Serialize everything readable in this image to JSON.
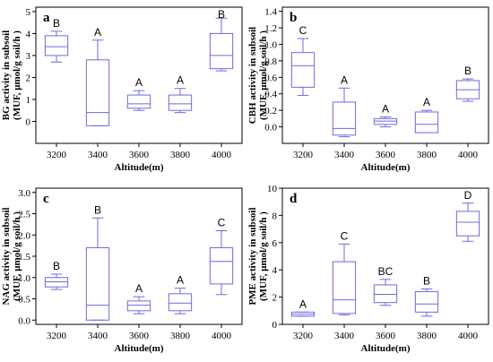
{
  "chart_data": [
    {
      "type": "box",
      "panel_label": "a",
      "ylabel": [
        "BG activity in subsoil",
        "(MUF, μmol/g soil/h )"
      ],
      "xlabel": "Altitude(m)",
      "color": "#6b6bde",
      "categories": [
        "3200",
        "3400",
        "3600",
        "3800",
        "4000"
      ],
      "min": [
        2.7,
        -0.2,
        0.5,
        0.4,
        2.3
      ],
      "q1": [
        3.0,
        -0.2,
        0.6,
        0.5,
        2.4
      ],
      "median": [
        3.4,
        0.4,
        0.8,
        0.8,
        3.0
      ],
      "q3": [
        3.9,
        2.8,
        1.2,
        1.2,
        4.0
      ],
      "max": [
        4.1,
        3.7,
        1.4,
        1.5,
        4.7
      ],
      "letters": [
        "B",
        "A",
        "A",
        "A",
        "B"
      ],
      "ylim": [
        -1,
        5.2
      ],
      "yticks": [
        0,
        1,
        2,
        3,
        4,
        5
      ]
    },
    {
      "type": "box",
      "panel_label": "b",
      "ylabel": [
        "CBH activity in subsoil",
        "(MUF, μmol/g soil/h )"
      ],
      "xlabel": "Altitude(m)",
      "color": "#6b6bde",
      "categories": [
        "3200",
        "3400",
        "3600",
        "3800",
        "4000"
      ],
      "min": [
        0.38,
        -0.12,
        0.0,
        -0.07,
        0.31
      ],
      "q1": [
        0.48,
        -0.1,
        0.03,
        -0.07,
        0.34
      ],
      "median": [
        0.74,
        -0.02,
        0.07,
        0.03,
        0.45
      ],
      "q3": [
        0.9,
        0.3,
        0.1,
        0.18,
        0.56
      ],
      "max": [
        1.07,
        0.47,
        0.12,
        0.2,
        0.58
      ],
      "letters": [
        "C",
        "A",
        "A",
        "A",
        "B"
      ],
      "ylim": [
        -0.2,
        1.45
      ],
      "yticks": [
        {
          "value": 0,
          "label": "0.0"
        },
        0.2,
        0.4,
        0.6,
        0.8,
        {
          "value": 1,
          "label": "1.0"
        },
        1.2,
        1.4
      ]
    },
    {
      "type": "box",
      "panel_label": "c",
      "ylabel": [
        "NAG activity in subsoil",
        "(MUF, μmol/g soil/h )"
      ],
      "xlabel": "Altitude(m)",
      "color": "#6b6bde",
      "categories": [
        "3200",
        "3400",
        "3600",
        "3800",
        "4000"
      ],
      "min": [
        0.72,
        0,
        0.15,
        0.15,
        0.6
      ],
      "q1": [
        0.78,
        0,
        0.22,
        0.22,
        0.85
      ],
      "median": [
        0.9,
        0.35,
        0.35,
        0.4,
        1.38
      ],
      "q3": [
        1.0,
        1.7,
        0.45,
        0.62,
        1.7
      ],
      "max": [
        1.08,
        2.4,
        0.55,
        0.75,
        2.1
      ],
      "letters": [
        "B",
        "B",
        "A",
        "A",
        "C"
      ],
      "ylim": [
        -0.1,
        3.1
      ],
      "yticks": [
        {
          "value": 0,
          "label": "0.0"
        },
        0.5,
        {
          "value": 1,
          "label": "1.0"
        },
        1.5,
        {
          "value": 2,
          "label": "2.0"
        },
        2.5,
        {
          "value": 3,
          "label": "3.0"
        }
      ]
    },
    {
      "type": "box",
      "panel_label": "d",
      "ylabel": [
        "PME activity in subsoil",
        "(MUF, μmol/g soil/h )"
      ],
      "xlabel": "Altitude(m)",
      "color": "#6b6bde",
      "categories": [
        "3200",
        "3400",
        "3600",
        "3800",
        "4000"
      ],
      "min": [
        0.6,
        0.7,
        1.4,
        0.6,
        6.1
      ],
      "q1": [
        0.6,
        0.8,
        1.6,
        0.9,
        6.5
      ],
      "median": [
        0.75,
        1.8,
        2.2,
        1.5,
        7.5
      ],
      "q3": [
        0.9,
        4.6,
        2.9,
        2.4,
        8.3
      ],
      "max": [
        0.9,
        5.9,
        3.3,
        2.6,
        8.9
      ],
      "letters": [
        "A",
        "C",
        "BC",
        "B",
        "D"
      ],
      "ylim": [
        0,
        10
      ],
      "yticks": [
        0,
        2,
        4,
        6,
        8,
        10
      ]
    }
  ]
}
